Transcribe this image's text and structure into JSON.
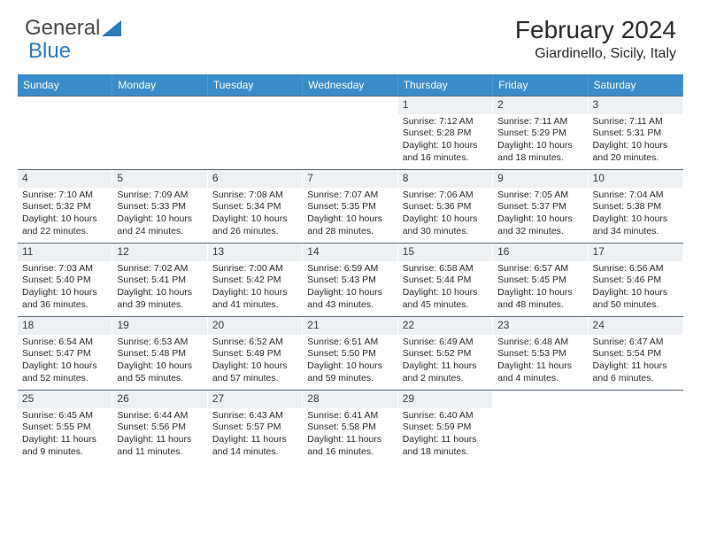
{
  "logo": {
    "text_a": "General",
    "text_b": "Blue"
  },
  "title": "February 2024",
  "location": "Giardinello, Sicily, Italy",
  "colors": {
    "header_bg": "#3a8bc9",
    "header_text": "#ffffff",
    "daynum_bg": "#eef1f4",
    "row_divider": "#5a6a7a",
    "logo_blue": "#2b7bbf",
    "text": "#2a2a2a"
  },
  "day_headers": [
    "Sunday",
    "Monday",
    "Tuesday",
    "Wednesday",
    "Thursday",
    "Friday",
    "Saturday"
  ],
  "weeks": [
    [
      {
        "n": "",
        "empty": true
      },
      {
        "n": "",
        "empty": true
      },
      {
        "n": "",
        "empty": true
      },
      {
        "n": "",
        "empty": true
      },
      {
        "n": "1",
        "sr": "Sunrise: 7:12 AM",
        "ss": "Sunset: 5:28 PM",
        "dl": "Daylight: 10 hours and 16 minutes."
      },
      {
        "n": "2",
        "sr": "Sunrise: 7:11 AM",
        "ss": "Sunset: 5:29 PM",
        "dl": "Daylight: 10 hours and 18 minutes."
      },
      {
        "n": "3",
        "sr": "Sunrise: 7:11 AM",
        "ss": "Sunset: 5:31 PM",
        "dl": "Daylight: 10 hours and 20 minutes."
      }
    ],
    [
      {
        "n": "4",
        "sr": "Sunrise: 7:10 AM",
        "ss": "Sunset: 5:32 PM",
        "dl": "Daylight: 10 hours and 22 minutes."
      },
      {
        "n": "5",
        "sr": "Sunrise: 7:09 AM",
        "ss": "Sunset: 5:33 PM",
        "dl": "Daylight: 10 hours and 24 minutes."
      },
      {
        "n": "6",
        "sr": "Sunrise: 7:08 AM",
        "ss": "Sunset: 5:34 PM",
        "dl": "Daylight: 10 hours and 26 minutes."
      },
      {
        "n": "7",
        "sr": "Sunrise: 7:07 AM",
        "ss": "Sunset: 5:35 PM",
        "dl": "Daylight: 10 hours and 28 minutes."
      },
      {
        "n": "8",
        "sr": "Sunrise: 7:06 AM",
        "ss": "Sunset: 5:36 PM",
        "dl": "Daylight: 10 hours and 30 minutes."
      },
      {
        "n": "9",
        "sr": "Sunrise: 7:05 AM",
        "ss": "Sunset: 5:37 PM",
        "dl": "Daylight: 10 hours and 32 minutes."
      },
      {
        "n": "10",
        "sr": "Sunrise: 7:04 AM",
        "ss": "Sunset: 5:38 PM",
        "dl": "Daylight: 10 hours and 34 minutes."
      }
    ],
    [
      {
        "n": "11",
        "sr": "Sunrise: 7:03 AM",
        "ss": "Sunset: 5:40 PM",
        "dl": "Daylight: 10 hours and 36 minutes."
      },
      {
        "n": "12",
        "sr": "Sunrise: 7:02 AM",
        "ss": "Sunset: 5:41 PM",
        "dl": "Daylight: 10 hours and 39 minutes."
      },
      {
        "n": "13",
        "sr": "Sunrise: 7:00 AM",
        "ss": "Sunset: 5:42 PM",
        "dl": "Daylight: 10 hours and 41 minutes."
      },
      {
        "n": "14",
        "sr": "Sunrise: 6:59 AM",
        "ss": "Sunset: 5:43 PM",
        "dl": "Daylight: 10 hours and 43 minutes."
      },
      {
        "n": "15",
        "sr": "Sunrise: 6:58 AM",
        "ss": "Sunset: 5:44 PM",
        "dl": "Daylight: 10 hours and 45 minutes."
      },
      {
        "n": "16",
        "sr": "Sunrise: 6:57 AM",
        "ss": "Sunset: 5:45 PM",
        "dl": "Daylight: 10 hours and 48 minutes."
      },
      {
        "n": "17",
        "sr": "Sunrise: 6:56 AM",
        "ss": "Sunset: 5:46 PM",
        "dl": "Daylight: 10 hours and 50 minutes."
      }
    ],
    [
      {
        "n": "18",
        "sr": "Sunrise: 6:54 AM",
        "ss": "Sunset: 5:47 PM",
        "dl": "Daylight: 10 hours and 52 minutes."
      },
      {
        "n": "19",
        "sr": "Sunrise: 6:53 AM",
        "ss": "Sunset: 5:48 PM",
        "dl": "Daylight: 10 hours and 55 minutes."
      },
      {
        "n": "20",
        "sr": "Sunrise: 6:52 AM",
        "ss": "Sunset: 5:49 PM",
        "dl": "Daylight: 10 hours and 57 minutes."
      },
      {
        "n": "21",
        "sr": "Sunrise: 6:51 AM",
        "ss": "Sunset: 5:50 PM",
        "dl": "Daylight: 10 hours and 59 minutes."
      },
      {
        "n": "22",
        "sr": "Sunrise: 6:49 AM",
        "ss": "Sunset: 5:52 PM",
        "dl": "Daylight: 11 hours and 2 minutes."
      },
      {
        "n": "23",
        "sr": "Sunrise: 6:48 AM",
        "ss": "Sunset: 5:53 PM",
        "dl": "Daylight: 11 hours and 4 minutes."
      },
      {
        "n": "24",
        "sr": "Sunrise: 6:47 AM",
        "ss": "Sunset: 5:54 PM",
        "dl": "Daylight: 11 hours and 6 minutes."
      }
    ],
    [
      {
        "n": "25",
        "sr": "Sunrise: 6:45 AM",
        "ss": "Sunset: 5:55 PM",
        "dl": "Daylight: 11 hours and 9 minutes."
      },
      {
        "n": "26",
        "sr": "Sunrise: 6:44 AM",
        "ss": "Sunset: 5:56 PM",
        "dl": "Daylight: 11 hours and 11 minutes."
      },
      {
        "n": "27",
        "sr": "Sunrise: 6:43 AM",
        "ss": "Sunset: 5:57 PM",
        "dl": "Daylight: 11 hours and 14 minutes."
      },
      {
        "n": "28",
        "sr": "Sunrise: 6:41 AM",
        "ss": "Sunset: 5:58 PM",
        "dl": "Daylight: 11 hours and 16 minutes."
      },
      {
        "n": "29",
        "sr": "Sunrise: 6:40 AM",
        "ss": "Sunset: 5:59 PM",
        "dl": "Daylight: 11 hours and 18 minutes."
      },
      {
        "n": "",
        "empty": true
      },
      {
        "n": "",
        "empty": true
      }
    ]
  ]
}
